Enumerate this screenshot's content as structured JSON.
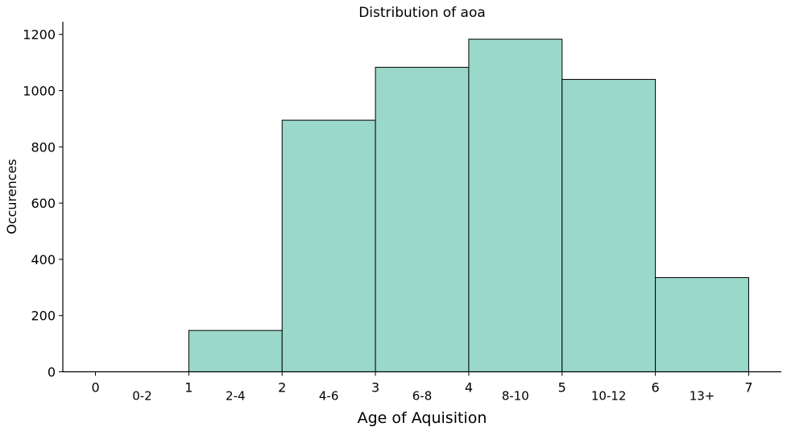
{
  "chart_data": {
    "type": "bar",
    "title": "Distribution of aoa",
    "xlabel": "Age of Aquisition",
    "ylabel": "Occurences",
    "bins": [
      {
        "category": "0-2",
        "x0": 0,
        "x1": 1,
        "value": 0
      },
      {
        "category": "2-4",
        "x0": 1,
        "x1": 2,
        "value": 147
      },
      {
        "category": "4-6",
        "x0": 2,
        "x1": 3,
        "value": 895
      },
      {
        "category": "6-8",
        "x0": 3,
        "x1": 4,
        "value": 1083
      },
      {
        "category": "8-10",
        "x0": 4,
        "x1": 5,
        "value": 1183
      },
      {
        "category": "10-12",
        "x0": 5,
        "x1": 6,
        "value": 1040
      },
      {
        "category": "13+",
        "x0": 6,
        "x1": 7,
        "value": 335
      }
    ],
    "xticks": [
      0,
      1,
      2,
      3,
      4,
      5,
      6,
      7
    ],
    "yticks": [
      0,
      200,
      400,
      600,
      800,
      1000,
      1200
    ],
    "xlim": [
      -0.35,
      7.35
    ],
    "ylim": [
      0,
      1245
    ],
    "grid": false,
    "bar_color": "#9ad8c9",
    "edge_color": "#000000"
  }
}
